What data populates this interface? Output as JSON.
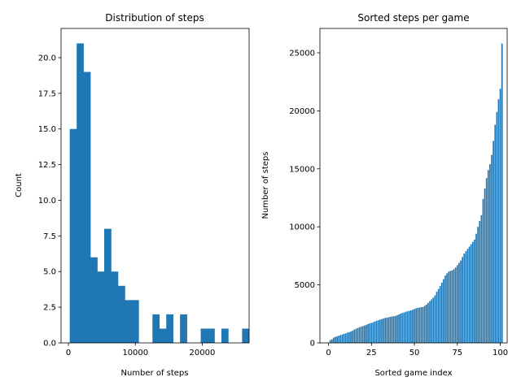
{
  "chart_data": [
    {
      "type": "bar",
      "kind": "histogram",
      "title": "Distribution of steps",
      "xlabel": "Number of steps",
      "ylabel": "Count",
      "xlim": [
        -1100,
        27000
      ],
      "ylim": [
        0,
        22.05
      ],
      "xticks": [
        0,
        10000,
        20000
      ],
      "xtick_labels": [
        "0",
        "10000",
        "20000"
      ],
      "yticks": [
        0,
        2.5,
        5,
        7.5,
        10,
        12.5,
        15,
        17.5,
        20
      ],
      "ytick_labels": [
        "0.0",
        "2.5",
        "5.0",
        "7.5",
        "10.0",
        "12.5",
        "15.0",
        "17.5",
        "20.0"
      ],
      "bin_start": 200,
      "bin_width": 1030,
      "counts": [
        15,
        21,
        19,
        6,
        5,
        8,
        5,
        4,
        3,
        3,
        0,
        0,
        2,
        1,
        2,
        0,
        2,
        0,
        0,
        1,
        1,
        0,
        1,
        0,
        0,
        1
      ],
      "color": "#1f77b4"
    },
    {
      "type": "bar",
      "title": "Sorted steps per game",
      "xlabel": "Sorted game index",
      "ylabel": "Number of steps",
      "xlim": [
        -5,
        104
      ],
      "ylim": [
        0,
        27100
      ],
      "xticks": [
        0,
        25,
        50,
        75,
        100
      ],
      "xtick_labels": [
        "0",
        "25",
        "50",
        "75",
        "100"
      ],
      "yticks": [
        0,
        5000,
        10000,
        15000,
        20000,
        25000
      ],
      "ytick_labels": [
        "0",
        "5000",
        "10000",
        "15000",
        "20000",
        "25000"
      ],
      "x_start": 1,
      "values": [
        250,
        320,
        450,
        520,
        560,
        620,
        680,
        720,
        780,
        820,
        880,
        920,
        980,
        1050,
        1150,
        1220,
        1280,
        1350,
        1400,
        1450,
        1500,
        1560,
        1620,
        1680,
        1720,
        1780,
        1850,
        1900,
        1950,
        2000,
        2050,
        2100,
        2150,
        2180,
        2200,
        2250,
        2280,
        2300,
        2320,
        2380,
        2450,
        2520,
        2580,
        2620,
        2680,
        2720,
        2760,
        2800,
        2860,
        2920,
        2980,
        3020,
        3050,
        3080,
        3100,
        3200,
        3300,
        3450,
        3600,
        3750,
        3900,
        4100,
        4400,
        4650,
        4900,
        5200,
        5500,
        5800,
        6000,
        6150,
        6200,
        6250,
        6350,
        6500,
        6700,
        6900,
        7100,
        7400,
        7700,
        7900,
        8100,
        8300,
        8500,
        8700,
        8900,
        9400,
        10000,
        10500,
        11000,
        12400,
        13300,
        14200,
        14900,
        15400,
        16200,
        17400,
        18800,
        19900,
        21000,
        21900,
        25800
      ],
      "color": "#1f77b4"
    }
  ]
}
